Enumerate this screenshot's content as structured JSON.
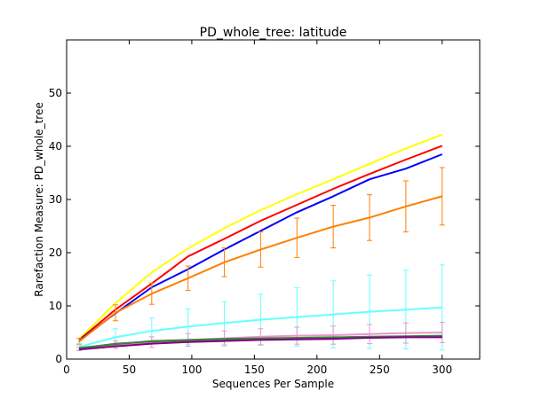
{
  "chart_data": {
    "type": "line",
    "title": "PD_whole_tree: latitude",
    "xlabel": "Sequences Per Sample",
    "ylabel": "Rarefaction Measure: PD_whole_tree",
    "xlim": [
      0,
      330
    ],
    "ylim": [
      0,
      60
    ],
    "xticks": [
      0,
      50,
      100,
      150,
      200,
      250,
      300
    ],
    "yticks": [
      0,
      10,
      20,
      30,
      40,
      50
    ],
    "grid": false,
    "x": [
      10,
      39,
      68,
      97,
      126,
      155,
      184,
      213,
      242,
      271,
      300
    ],
    "series": [
      {
        "color": "#ffff00",
        "values": [
          3.8,
          10.5,
          16.3,
          20.8,
          24.6,
          28.0,
          31.0,
          33.8,
          36.7,
          39.6,
          42.2
        ],
        "errors": null
      },
      {
        "color": "#ff0000",
        "values": [
          3.6,
          9.3,
          14.2,
          19.3,
          22.6,
          26.0,
          29.0,
          32.0,
          34.8,
          37.5,
          40.1
        ],
        "errors": null
      },
      {
        "color": "#0000ff",
        "values": [
          3.5,
          8.6,
          13.5,
          16.9,
          20.6,
          24.1,
          27.6,
          30.6,
          33.8,
          35.8,
          38.5
        ],
        "errors": null
      },
      {
        "color": "#ff7f00",
        "values": [
          3.3,
          8.7,
          12.3,
          15.2,
          18.2,
          20.6,
          22.8,
          24.9,
          26.6,
          28.7,
          30.6
        ],
        "errors": [
          0.6,
          1.5,
          2.0,
          2.3,
          2.7,
          3.3,
          3.7,
          4.0,
          4.3,
          4.8,
          5.4
        ]
      },
      {
        "color": "#66ffff",
        "values": [
          2.3,
          4.1,
          5.3,
          6.1,
          6.8,
          7.4,
          7.9,
          8.4,
          8.9,
          9.3,
          9.7
        ],
        "errors": [
          0.6,
          1.6,
          2.4,
          3.3,
          4.0,
          4.8,
          5.5,
          6.3,
          6.9,
          7.4,
          8.0
        ]
      },
      {
        "color": "#e896cc",
        "values": [
          1.9,
          2.7,
          3.2,
          3.6,
          3.9,
          4.2,
          4.4,
          4.5,
          4.7,
          4.9,
          5.0
        ],
        "errors": [
          0.3,
          0.7,
          1.0,
          1.2,
          1.4,
          1.5,
          1.6,
          1.7,
          1.8,
          1.9,
          1.9
        ]
      },
      {
        "color": "#666666",
        "values": [
          2.0,
          2.9,
          3.3,
          3.5,
          3.7,
          3.8,
          3.9,
          4.0,
          4.1,
          4.2,
          4.3
        ],
        "errors": null
      },
      {
        "color": "#3f7f3f",
        "values": [
          2.1,
          2.8,
          3.4,
          3.6,
          3.8,
          3.9,
          4.0,
          4.1,
          4.2,
          4.3,
          4.4
        ],
        "errors": null
      },
      {
        "color": "#800080",
        "values": [
          1.8,
          2.4,
          2.9,
          3.2,
          3.4,
          3.6,
          3.7,
          3.8,
          4.0,
          4.1,
          4.1
        ],
        "errors": null
      }
    ]
  }
}
